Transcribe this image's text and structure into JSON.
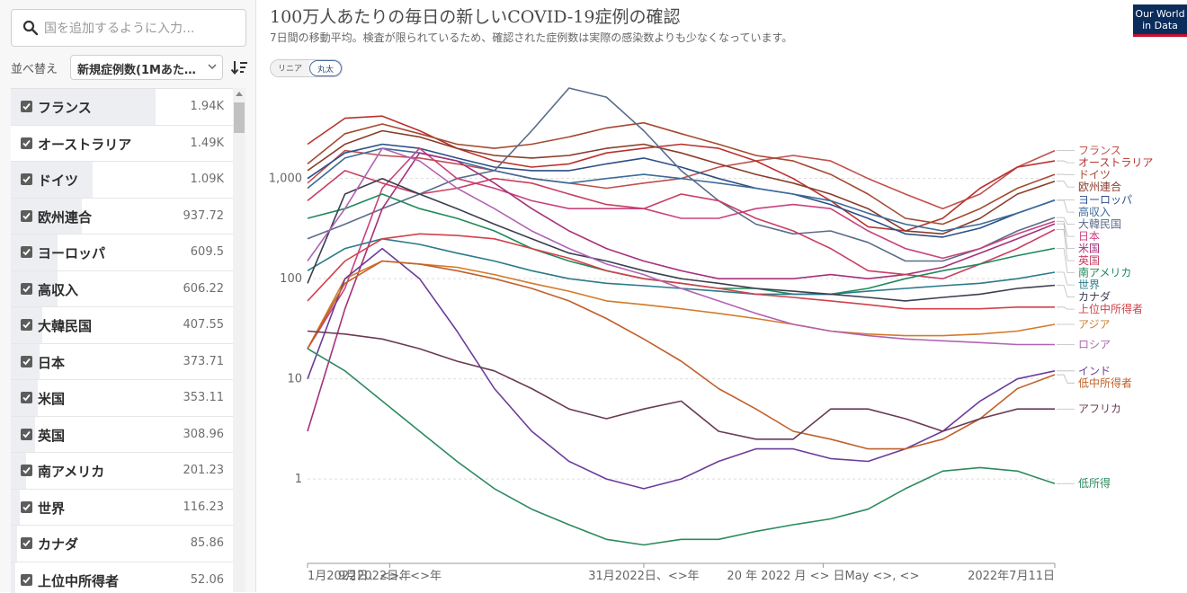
{
  "sidebar": {
    "search_placeholder": "国を追加するように入力...",
    "sort_label": "並べ替え",
    "sort_value": "新規症例数(1Mあた…",
    "entities": [
      {
        "name": "フランス",
        "value": "1.94K",
        "fraction": 0.65,
        "selected": true
      },
      {
        "name": "オーストラリア",
        "value": "1.49K",
        "fraction": 0.0,
        "selected": false
      },
      {
        "name": "ドイツ",
        "value": "1.09K",
        "fraction": 0.37,
        "selected": false
      },
      {
        "name": "欧州連合",
        "value": "937.72",
        "fraction": 0.32,
        "selected": false
      },
      {
        "name": "ヨーロッパ",
        "value": "609.5",
        "fraction": 0.21,
        "selected": false
      },
      {
        "name": "高収入",
        "value": "606.22",
        "fraction": 0.21,
        "selected": false
      },
      {
        "name": "大韓民国",
        "value": "407.55",
        "fraction": 0.14,
        "selected": false
      },
      {
        "name": "日本",
        "value": "373.71",
        "fraction": 0.13,
        "selected": false
      },
      {
        "name": "米国",
        "value": "353.11",
        "fraction": 0.12,
        "selected": false
      },
      {
        "name": "英国",
        "value": "308.96",
        "fraction": 0.11,
        "selected": false
      },
      {
        "name": "南アメリカ",
        "value": "201.23",
        "fraction": 0.07,
        "selected": false
      },
      {
        "name": "世界",
        "value": "116.23",
        "fraction": 0.04,
        "selected": false
      },
      {
        "name": "カナダ",
        "value": "85.86",
        "fraction": 0.03,
        "selected": false
      },
      {
        "name": "上位中所得者",
        "value": "52.06",
        "fraction": 0.02,
        "selected": false
      }
    ]
  },
  "header": {
    "title": "100万人あたりの毎日の新しいCOVID-19症例の確認",
    "subtitle": "7日間の移動平均。検査が限られているため、確認された症例数は実際の感染数よりも少なくなっています。",
    "toggle_linear": "リニア",
    "toggle_log": "丸太",
    "logo_line1": "Our World",
    "logo_line2": "in Data"
  },
  "colors": {
    "accent": "#0b2d5c",
    "logo_stripe": "#c8102e"
  },
  "chart_data": {
    "type": "line",
    "scale": "log",
    "ylim": [
      0.15,
      8000
    ],
    "y_ticks": [
      1,
      10,
      100,
      1000
    ],
    "y_tick_labels": [
      "1",
      "10",
      "100",
      "1,000"
    ],
    "x_tick_labels": [
      "1月2022日、<>年",
      "9月2022日、<>年",
      "31月2022日、<>年",
      "20 年 2022 月 <> 日May <>, <>",
      "2022年7月11日"
    ],
    "x_tick_positions": [
      0,
      0.11,
      0.45,
      0.69,
      1.0
    ],
    "x_points": [
      0,
      0.05,
      0.1,
      0.15,
      0.2,
      0.25,
      0.3,
      0.35,
      0.4,
      0.45,
      0.5,
      0.55,
      0.6,
      0.65,
      0.7,
      0.75,
      0.8,
      0.85,
      0.9,
      0.95,
      1.0
    ],
    "grid": "horizontal dashed",
    "series": [
      {
        "name": "フランス",
        "color": "#c0504d",
        "values": [
          900,
          1900,
          1700,
          1600,
          1400,
          1200,
          1000,
          900,
          800,
          900,
          1000,
          1300,
          1500,
          1700,
          1500,
          1000,
          700,
          500,
          700,
          1300,
          1900
        ]
      },
      {
        "name": "オーストラリア",
        "color": "#b8322e",
        "values": [
          2200,
          4000,
          4200,
          3000,
          2000,
          1500,
          1300,
          1400,
          1800,
          2000,
          2200,
          2000,
          1500,
          1000,
          600,
          330,
          300,
          400,
          800,
          1300,
          1500
        ]
      },
      {
        "name": "ドイツ",
        "color": "#a44a30",
        "values": [
          1400,
          2800,
          3500,
          2800,
          2200,
          2000,
          2200,
          2600,
          3200,
          3600,
          2800,
          2200,
          1700,
          1500,
          1100,
          700,
          400,
          350,
          500,
          800,
          1100
        ]
      },
      {
        "name": "欧州連合",
        "color": "#8a3c2a",
        "values": [
          1200,
          2200,
          3000,
          2600,
          2000,
          1700,
          1600,
          1700,
          2000,
          2200,
          1800,
          1400,
          1100,
          900,
          700,
          500,
          300,
          280,
          400,
          700,
          940
        ]
      },
      {
        "name": "ヨーロッパ",
        "color": "#2c4f86",
        "values": [
          1000,
          1800,
          2200,
          2000,
          1600,
          1300,
          1200,
          1200,
          1400,
          1600,
          1300,
          1000,
          800,
          700,
          550,
          400,
          280,
          260,
          320,
          450,
          610
        ]
      },
      {
        "name": "高収入",
        "color": "#3d6b99",
        "values": [
          800,
          1600,
          2000,
          1800,
          1500,
          1200,
          1000,
          900,
          1000,
          1100,
          1000,
          900,
          800,
          700,
          600,
          450,
          350,
          300,
          350,
          450,
          606
        ]
      },
      {
        "name": "大韓民国",
        "color": "#5a6c8a",
        "values": [
          250,
          350,
          500,
          700,
          1000,
          1200,
          3000,
          8000,
          6500,
          3000,
          1200,
          600,
          350,
          280,
          300,
          230,
          150,
          150,
          200,
          300,
          408
        ]
      },
      {
        "name": "日本",
        "color": "#c8427e",
        "values": [
          20,
          80,
          800,
          2000,
          1000,
          800,
          600,
          500,
          500,
          500,
          400,
          400,
          500,
          550,
          500,
          300,
          200,
          160,
          200,
          280,
          374
        ]
      },
      {
        "name": "米国",
        "color": "#a6317a",
        "values": [
          3,
          50,
          500,
          1800,
          1500,
          900,
          500,
          300,
          200,
          150,
          120,
          100,
          100,
          100,
          110,
          100,
          110,
          130,
          180,
          250,
          353
        ]
      },
      {
        "name": "英国",
        "color": "#c93f64",
        "values": [
          600,
          1200,
          900,
          700,
          800,
          1000,
          900,
          700,
          550,
          500,
          700,
          600,
          400,
          300,
          200,
          120,
          110,
          100,
          140,
          200,
          309
        ]
      },
      {
        "name": "南アメリカ",
        "color": "#1f8a5a",
        "values": [
          400,
          500,
          700,
          500,
          400,
          300,
          200,
          150,
          120,
          100,
          90,
          80,
          80,
          70,
          70,
          80,
          100,
          120,
          140,
          170,
          201
        ]
      },
      {
        "name": "世界",
        "color": "#2a7a8a",
        "values": [
          120,
          200,
          250,
          220,
          180,
          150,
          120,
          100,
          90,
          85,
          80,
          75,
          70,
          70,
          70,
          75,
          80,
          85,
          90,
          100,
          116
        ]
      },
      {
        "name": "カナダ",
        "color": "#3a3f4e",
        "values": [
          90,
          700,
          1000,
          700,
          500,
          350,
          250,
          180,
          150,
          120,
          100,
          90,
          80,
          75,
          70,
          65,
          60,
          65,
          70,
          80,
          86
        ]
      },
      {
        "name": "上位中所得者",
        "color": "#d1414a",
        "values": [
          60,
          150,
          250,
          280,
          270,
          250,
          200,
          160,
          120,
          100,
          90,
          80,
          70,
          65,
          60,
          55,
          50,
          50,
          50,
          52,
          52
        ]
      },
      {
        "name": "アジア",
        "color": "#d27a2a",
        "values": [
          20,
          100,
          150,
          140,
          130,
          110,
          90,
          75,
          60,
          55,
          50,
          45,
          40,
          35,
          30,
          28,
          27,
          27,
          28,
          30,
          35
        ]
      },
      {
        "name": "ロシア",
        "color": "#b064b4",
        "values": [
          150,
          500,
          2000,
          1500,
          800,
          500,
          300,
          200,
          140,
          110,
          80,
          60,
          45,
          35,
          30,
          27,
          25,
          24,
          23,
          22,
          22
        ]
      },
      {
        "name": "インド",
        "color": "#6a3c9a",
        "values": [
          10,
          100,
          200,
          100,
          30,
          8,
          3,
          1.5,
          1,
          0.8,
          1,
          1.5,
          2,
          2,
          1.6,
          1.5,
          2,
          3,
          6,
          10,
          12
        ]
      },
      {
        "name": "低中所得者",
        "color": "#c0602a",
        "values": [
          20,
          90,
          150,
          140,
          120,
          100,
          80,
          60,
          40,
          25,
          15,
          8,
          5,
          3,
          2.5,
          2,
          2,
          2.5,
          4,
          8,
          11
        ]
      },
      {
        "name": "アフリカ",
        "color": "#6b3a55",
        "values": [
          30,
          28,
          25,
          20,
          15,
          12,
          8,
          5,
          4,
          5,
          6,
          3,
          2.5,
          2.5,
          5,
          5,
          4,
          3,
          4,
          5,
          5
        ]
      },
      {
        "name": "低所得",
        "color": "#2d8a5e",
        "values": [
          20,
          12,
          6,
          3,
          1.5,
          0.8,
          0.5,
          0.35,
          0.25,
          0.22,
          0.25,
          0.25,
          0.3,
          0.35,
          0.4,
          0.5,
          0.8,
          1.2,
          1.3,
          1.2,
          0.9
        ]
      }
    ]
  }
}
